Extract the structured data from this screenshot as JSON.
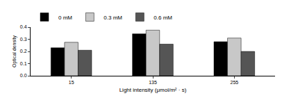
{
  "chart_data": {
    "type": "bar",
    "categories": [
      "15",
      "135",
      "255"
    ],
    "series": [
      {
        "name": "0 mM",
        "color": "#000000",
        "values": [
          0.23,
          0.345,
          0.28
        ]
      },
      {
        "name": "0.3 mM",
        "color": "#c8c8c8",
        "values": [
          0.275,
          0.375,
          0.31
        ]
      },
      {
        "name": "0.6 mM",
        "color": "#555555",
        "values": [
          0.21,
          0.26,
          0.2
        ]
      }
    ],
    "x_label": "Light intensity (μmol/m² · s)",
    "y_label": "Optical density",
    "ylim": [
      0,
      0.4
    ],
    "yticks": [
      {
        "value": 0,
        "label": "0.0"
      },
      0.1,
      0.2,
      0.3,
      0.4
    ],
    "legend": "top left",
    "grid": false
  }
}
